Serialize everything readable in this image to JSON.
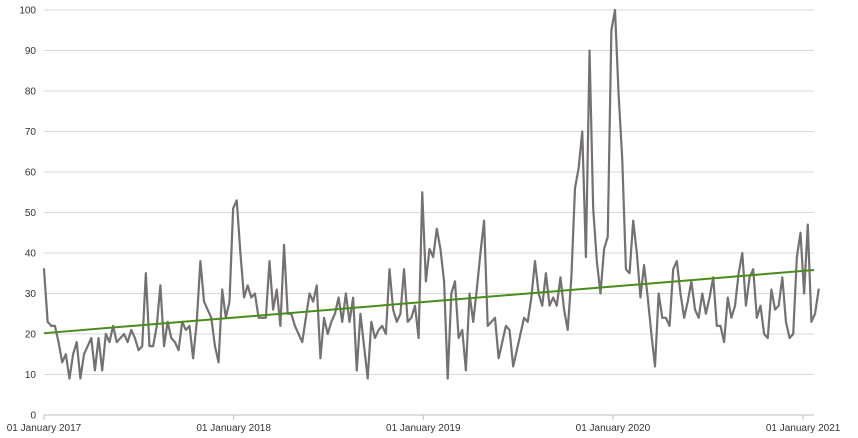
{
  "chart_data": {
    "type": "line",
    "title": "",
    "xlabel": "",
    "ylabel": "",
    "ylim": [
      0,
      100
    ],
    "yticks": [
      0,
      10,
      20,
      30,
      40,
      50,
      60,
      70,
      80,
      90,
      100
    ],
    "xticks": [
      "01 January 2017",
      "01 January 2018",
      "01 January 2019",
      "01 January 2020",
      "01 January 2021"
    ],
    "xrange": [
      "2017-01-01",
      "2021-01-22"
    ],
    "grid": "horizontal",
    "legend": "none",
    "series": [
      {
        "color": "#767171",
        "x_start": "2017-01-01",
        "x_step_weeks": 1,
        "values": [
          36,
          23,
          22,
          22,
          18,
          13,
          15,
          9,
          15,
          18,
          9,
          15,
          17,
          19,
          11,
          19,
          11,
          20,
          18,
          22,
          18,
          19,
          20,
          18,
          21,
          19,
          16,
          17,
          35,
          17,
          17,
          22,
          32,
          17,
          23,
          19,
          18,
          16,
          23,
          21,
          22,
          14,
          23,
          38,
          28,
          26,
          24,
          17,
          13,
          31,
          24,
          28,
          51,
          53,
          40,
          29,
          32,
          29,
          30,
          24,
          24,
          24,
          38,
          26,
          31,
          22,
          42,
          25,
          25,
          22,
          20,
          18,
          24,
          30,
          28,
          32,
          14,
          24,
          20,
          23,
          25,
          29,
          23,
          30,
          23,
          29,
          11,
          25,
          17,
          9,
          23,
          19,
          21,
          22,
          20,
          36,
          26,
          23,
          25,
          36,
          23,
          24,
          27,
          19,
          55,
          33,
          41,
          39,
          46,
          41,
          33,
          9,
          30,
          33,
          19,
          21,
          11,
          30,
          23,
          31,
          40,
          48,
          22,
          23,
          24,
          14,
          18,
          22,
          21,
          12,
          16,
          20,
          24,
          23,
          29,
          38,
          30,
          27,
          35,
          27,
          29,
          27,
          34,
          26,
          21,
          34,
          56,
          61,
          70,
          39,
          90,
          51,
          38,
          30,
          41,
          44,
          95,
          100,
          79,
          63,
          36,
          35,
          48,
          40,
          29,
          37,
          29,
          20,
          12,
          30,
          24,
          24,
          22,
          36,
          38,
          30,
          24,
          28,
          33,
          26,
          24,
          30,
          25,
          29,
          34,
          22,
          22,
          18,
          29,
          24,
          27,
          35,
          40,
          27,
          34,
          36,
          24,
          27,
          20,
          19,
          31,
          26,
          27,
          34,
          23,
          19,
          20,
          39,
          45,
          30,
          47,
          23,
          25,
          31
        ]
      },
      {
        "color": "#4a8c1c",
        "trend": "linear",
        "start_value": 20.2,
        "end_value": 35.8
      }
    ]
  }
}
